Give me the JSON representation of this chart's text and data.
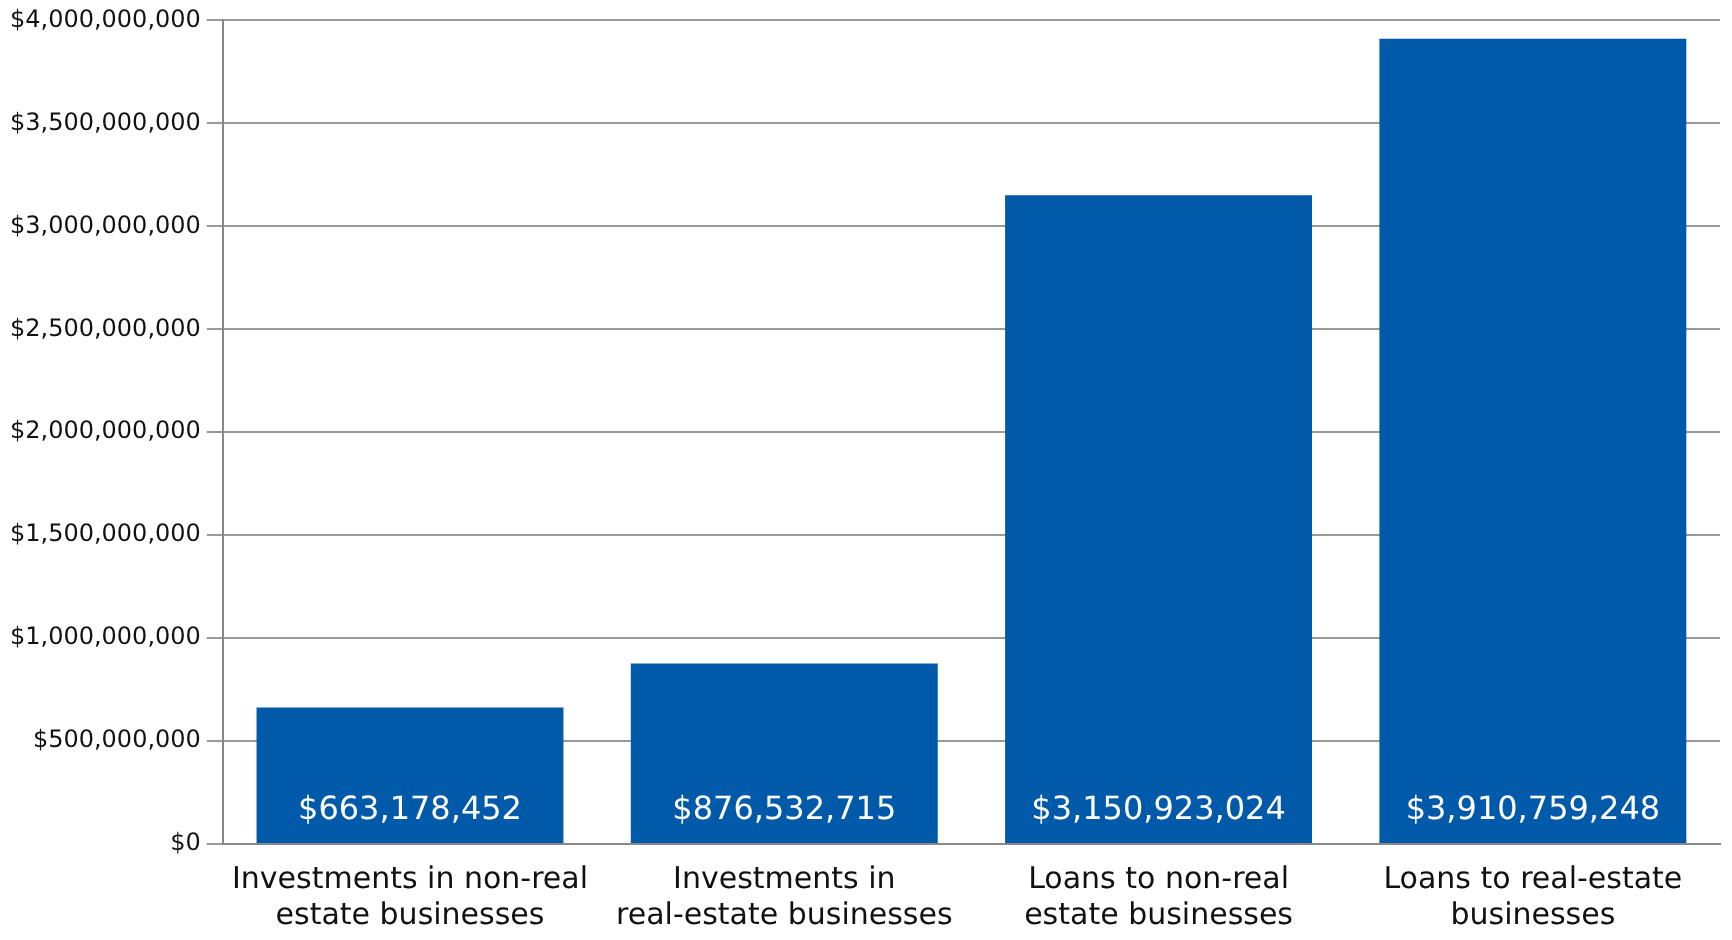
{
  "chart_data": {
    "type": "bar",
    "categories": [
      "Investments in non-real estate businesses",
      "Investments in real-estate businesses",
      "Loans to non-real estate businesses",
      "Loans to real-estate businesses"
    ],
    "values": [
      663178452,
      876532715,
      3150923024,
      3910759248
    ],
    "value_labels": [
      "$663,178,452",
      "$876,532,715",
      "$3,150,923,024",
      "$3,910,759,248"
    ],
    "color": "#0059a9",
    "ylim": [
      0,
      4000000000
    ],
    "yticks": [
      {
        "value": 0,
        "label": "$0"
      },
      {
        "value": 500000000,
        "label": "$500,000,000"
      },
      {
        "value": 1000000000,
        "label": "$1,000,000,000"
      },
      {
        "value": 1500000000,
        "label": "$1,500,000,000"
      },
      {
        "value": 2000000000,
        "label": "$2,000,000,000"
      },
      {
        "value": 2500000000,
        "label": "$2,500,000,000"
      },
      {
        "value": 3000000000,
        "label": "$3,000,000,000"
      },
      {
        "value": 3500000000,
        "label": "$3,500,000,000"
      },
      {
        "value": 4000000000,
        "label": "$4,000,000,000"
      }
    ],
    "grid": "y",
    "legend": false
  }
}
